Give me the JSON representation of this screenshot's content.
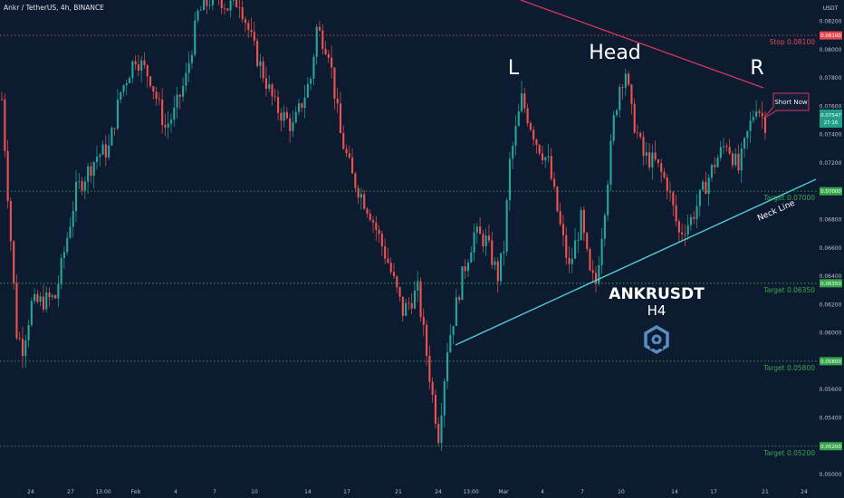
{
  "header": {
    "symbol_title": "Ankr / TetherUS, 4h, BINANCE"
  },
  "price_axis": {
    "currency": "USDT",
    "ticks": [
      "0.08200",
      "0.08000",
      "0.07800",
      "0.07600",
      "0.07400",
      "0.07200",
      "0.06800",
      "0.06600",
      "0.06400",
      "0.06200",
      "0.06000",
      "0.05600",
      "0.05400",
      "0.05000"
    ],
    "tick_values": [
      0.082,
      0.08,
      0.078,
      0.076,
      0.074,
      0.072,
      0.068,
      0.066,
      0.064,
      0.062,
      0.06,
      0.056,
      0.054,
      0.05
    ],
    "current_price": "0.07547",
    "countdown": "27:16",
    "level_tags": [
      "0.08100",
      "0.07000",
      "0.06350",
      "0.05800",
      "0.05200"
    ]
  },
  "time_axis": {
    "ticks": [
      "24",
      "27",
      "13:00",
      "Feb",
      "4",
      "7",
      "10",
      "14",
      "17",
      "21",
      "24",
      "13:00",
      "Mar",
      "4",
      "7",
      "10",
      "14",
      "17",
      "21",
      "24"
    ]
  },
  "levels": [
    {
      "value": 0.081,
      "label": "Stop 0.08100",
      "color": "#e5484f"
    },
    {
      "value": 0.07,
      "label": "Target 0.07000",
      "color": "#38a64c"
    },
    {
      "value": 0.0635,
      "label": "Target 0.06350",
      "color": "#38a64c"
    },
    {
      "value": 0.058,
      "label": "Target 0.05800",
      "color": "#38a64c"
    },
    {
      "value": 0.052,
      "label": "Target 0.05200",
      "color": "#38a64c"
    }
  ],
  "annotations": {
    "left_shoulder": "L",
    "head": "Head",
    "right_shoulder": "R",
    "short_callout": "Short Now",
    "neck_line": "Neck Line",
    "pair": "ANKRUSDT",
    "timeframe": "H4"
  },
  "colors": {
    "up": "#26a69a",
    "down": "#ef5350",
    "neck": "#4ec9cf",
    "trend": "#d6375a",
    "background": "#0d1b31"
  },
  "chart_data": {
    "type": "candlestick",
    "title": "Ankr / TetherUS, 4h, BINANCE",
    "ylim": [
      0.0493,
      0.0835
    ],
    "grid": false,
    "close_path": [
      [
        0,
        0.0765
      ],
      [
        5,
        0.06
      ],
      [
        7,
        0.059
      ],
      [
        10,
        0.062
      ],
      [
        18,
        0.0625
      ],
      [
        25,
        0.07
      ],
      [
        32,
        0.0725
      ],
      [
        36,
        0.073
      ],
      [
        40,
        0.077
      ],
      [
        45,
        0.0795
      ],
      [
        50,
        0.078
      ],
      [
        55,
        0.0745
      ],
      [
        58,
        0.0755
      ],
      [
        62,
        0.078
      ],
      [
        66,
        0.0825
      ],
      [
        72,
        0.084
      ],
      [
        76,
        0.083
      ],
      [
        80,
        0.0835
      ],
      [
        85,
        0.08
      ],
      [
        92,
        0.076
      ],
      [
        98,
        0.0745
      ],
      [
        104,
        0.078
      ],
      [
        106,
        0.0815
      ],
      [
        110,
        0.08
      ],
      [
        114,
        0.074
      ],
      [
        118,
        0.071
      ],
      [
        124,
        0.0685
      ],
      [
        130,
        0.065
      ],
      [
        135,
        0.0615
      ],
      [
        140,
        0.063
      ],
      [
        145,
        0.0555
      ],
      [
        147,
        0.0528
      ],
      [
        150,
        0.059
      ],
      [
        155,
        0.064
      ],
      [
        159,
        0.067
      ],
      [
        163,
        0.0665
      ],
      [
        167,
        0.064
      ],
      [
        169,
        0.066
      ],
      [
        171,
        0.072
      ],
      [
        175,
        0.0765
      ],
      [
        180,
        0.0735
      ],
      [
        184,
        0.072
      ],
      [
        188,
        0.0675
      ],
      [
        191,
        0.0645
      ],
      [
        195,
        0.068
      ],
      [
        198,
        0.064
      ],
      [
        200,
        0.0635
      ],
      [
        203,
        0.069
      ],
      [
        206,
        0.075
      ],
      [
        208,
        0.0775
      ],
      [
        210,
        0.0785
      ],
      [
        212,
        0.0755
      ],
      [
        216,
        0.0725
      ],
      [
        220,
        0.072
      ],
      [
        224,
        0.0705
      ],
      [
        228,
        0.067
      ],
      [
        232,
        0.068
      ],
      [
        235,
        0.0695
      ],
      [
        240,
        0.072
      ],
      [
        244,
        0.0735
      ],
      [
        248,
        0.0715
      ],
      [
        251,
        0.074
      ],
      [
        254,
        0.0762
      ],
      [
        257,
        0.0748
      ]
    ]
  }
}
